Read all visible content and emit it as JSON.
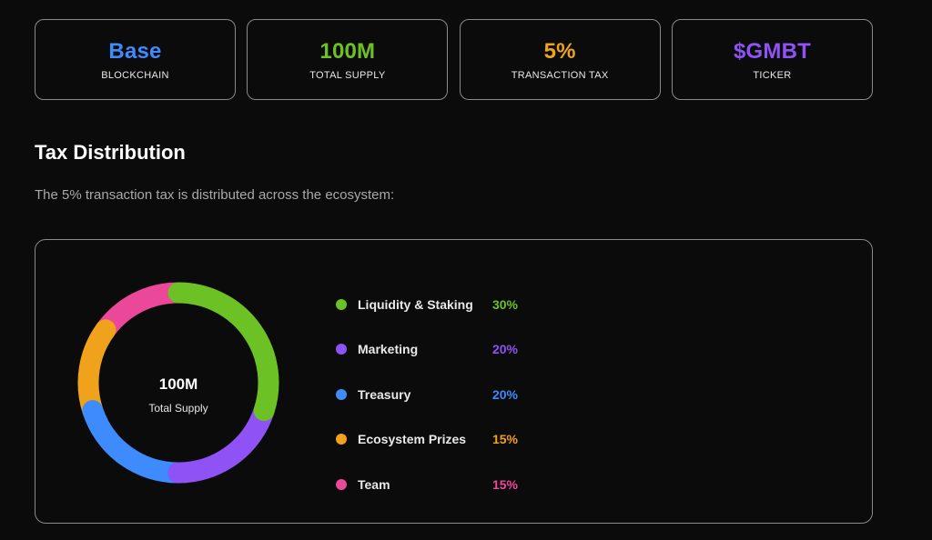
{
  "stats": [
    {
      "value": "Base",
      "label": "BLOCKCHAIN",
      "color": "#3d8bfd"
    },
    {
      "value": "100M",
      "label": "TOTAL SUPPLY",
      "color": "#6cc224"
    },
    {
      "value": "5%",
      "label": "TRANSACTION TAX",
      "color": "#f0a21c"
    },
    {
      "value": "$GMBT",
      "label": "TICKER",
      "color": "#8e52f5"
    }
  ],
  "section": {
    "title": "Tax Distribution",
    "description": "The 5% transaction tax is distributed across the ecosystem:"
  },
  "chart_data": {
    "type": "pie",
    "center_value": "100M",
    "center_label": "Total Supply",
    "categories": [
      "Liquidity & Staking",
      "Marketing",
      "Treasury",
      "Ecosystem Prizes",
      "Team"
    ],
    "values": [
      30,
      20,
      20,
      15,
      15
    ],
    "value_labels": [
      "30%",
      "20%",
      "20%",
      "15%",
      "15%"
    ],
    "colors": [
      "#6cc224",
      "#8e52f5",
      "#3d8bfd",
      "#f0a21c",
      "#ec4899"
    ],
    "legend_position": "right"
  }
}
